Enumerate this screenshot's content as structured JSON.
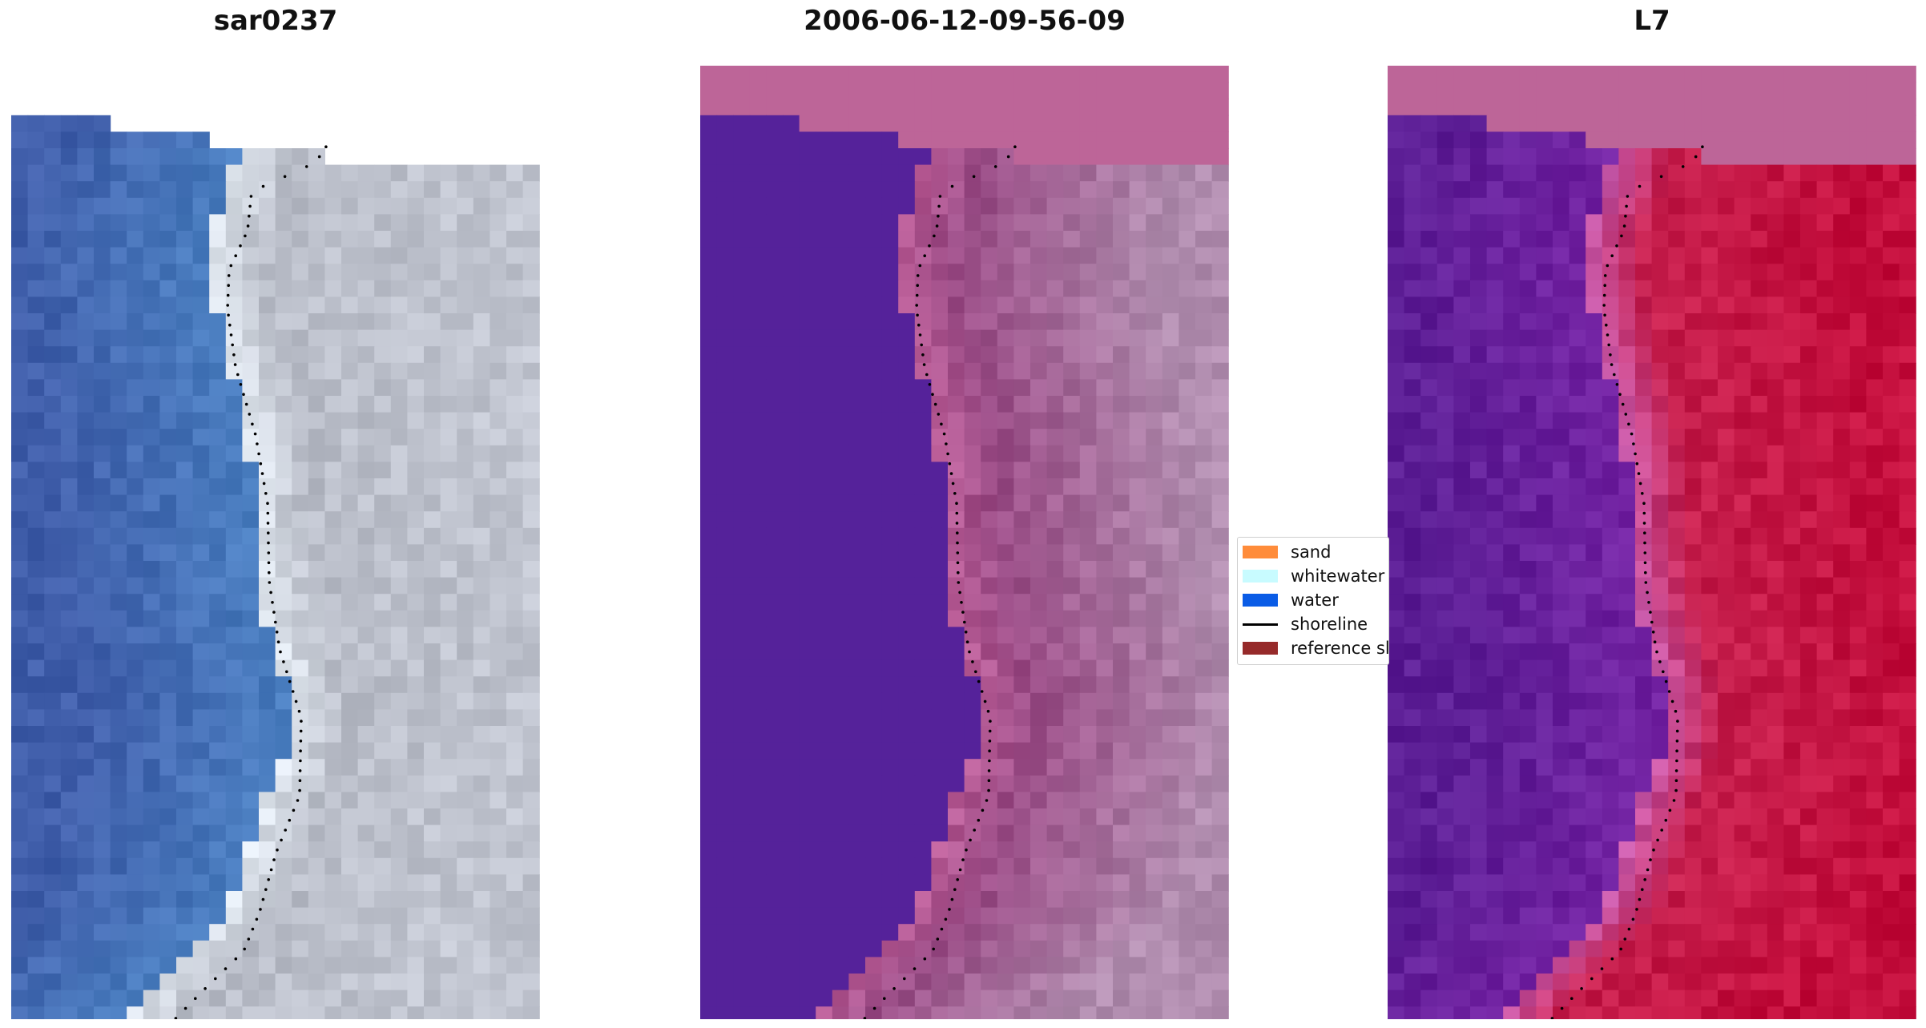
{
  "panels": [
    {
      "title": "sar0237",
      "palette": "rgb"
    },
    {
      "title": "2006-06-12-09-56-09",
      "palette": "classified"
    },
    {
      "title": "L7",
      "palette": "index"
    }
  ],
  "legend": {
    "items": [
      {
        "label": "sand",
        "color": "#ff8c3a",
        "kind": "patch"
      },
      {
        "label": "whitewater",
        "color": "#c8fbff",
        "kind": "patch"
      },
      {
        "label": "water",
        "color": "#0a5ce6",
        "kind": "patch"
      },
      {
        "label": "shoreline",
        "color": "#000000",
        "kind": "line"
      },
      {
        "label": "reference sl",
        "color": "#962a2a",
        "kind": "patch"
      }
    ]
  },
  "colors": {
    "water_rgb": "#4a7ec0",
    "land_rgb": "#b9bdc8",
    "water_classified": "#55229a",
    "land_classified": "#9a4c86",
    "nodata_classified": "#bd6598",
    "water_index": "#7222a2",
    "land_index": "#c51e4c",
    "nodata_index": "#bd6598"
  }
}
